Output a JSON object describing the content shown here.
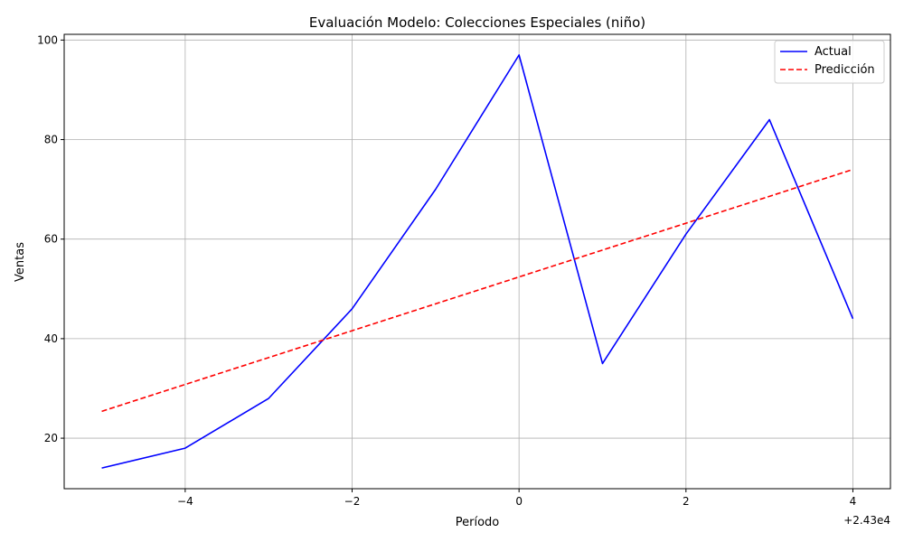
{
  "chart_data": {
    "type": "line",
    "title": "Evaluación Modelo: Colecciones Especiales (niño)",
    "xlabel": "Período",
    "ylabel": "Ventas",
    "x_offset_label": "+2.43e4",
    "x": [
      -5,
      -4,
      -3,
      -2,
      -1,
      0,
      1,
      2,
      3,
      4
    ],
    "series": [
      {
        "name": "Actual",
        "color": "#0000ff",
        "style": "solid",
        "values": [
          14,
          18,
          28,
          46,
          70,
          97,
          35,
          61,
          84,
          44
        ]
      },
      {
        "name": "Predicción",
        "color": "#ff0000",
        "style": "dashed",
        "values": [
          25.4,
          30.8,
          36.2,
          41.6,
          47.0,
          52.4,
          57.8,
          63.2,
          68.6,
          74.0
        ]
      }
    ],
    "xlim": [
      -5.45,
      4.45
    ],
    "ylim": [
      9.85,
      101.15
    ],
    "xticks": [
      -4,
      -2,
      0,
      2,
      4
    ],
    "xtick_labels": [
      "−4",
      "−2",
      "0",
      "2",
      "4"
    ],
    "yticks": [
      20,
      40,
      60,
      80,
      100
    ],
    "ytick_labels": [
      "20",
      "40",
      "60",
      "80",
      "100"
    ],
    "grid": true,
    "legend_position": "top-right"
  }
}
